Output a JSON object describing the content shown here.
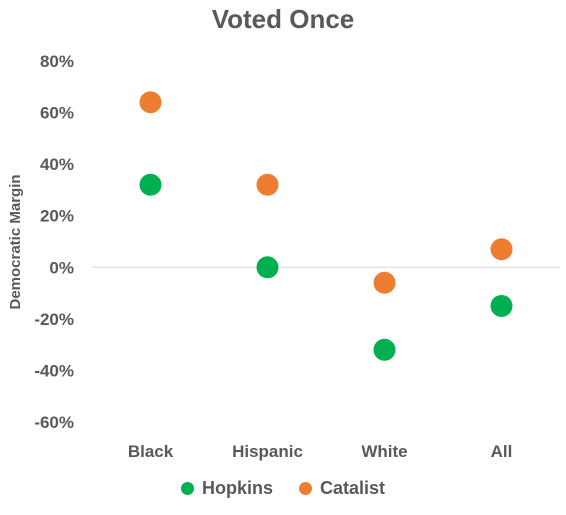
{
  "chart_data": {
    "type": "scatter",
    "title": "Voted Once",
    "ylabel": "Democratic Margin",
    "xlabel": "",
    "categories": [
      "Black",
      "Hispanic",
      "White",
      "All"
    ],
    "y_ticks": [
      "80%",
      "60%",
      "40%",
      "20%",
      "0%",
      "-20%",
      "-40%",
      "-60%"
    ],
    "ylim": [
      -60,
      80
    ],
    "series": [
      {
        "name": "Hopkins",
        "color": "#00B050",
        "values": [
          32,
          0,
          -32,
          -15
        ]
      },
      {
        "name": "Catalist",
        "color": "#ED7D31",
        "values": [
          64,
          32,
          -6,
          7
        ]
      }
    ],
    "legend_position": "bottom",
    "grid": false
  }
}
